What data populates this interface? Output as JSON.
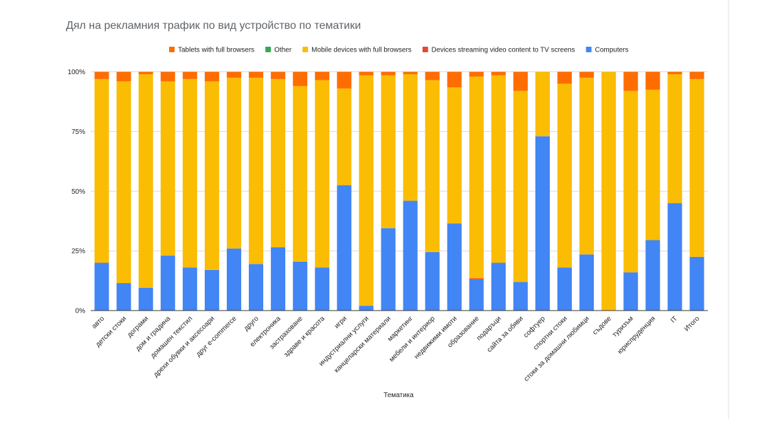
{
  "chart_data": {
    "type": "bar",
    "stacked": true,
    "percent_stacked": true,
    "title": "Дял на рекламния трафик по вид устройство по тематики",
    "xlabel": "Тематика",
    "ylabel": "",
    "ylim": [
      0,
      100
    ],
    "y_ticks": [
      "0%",
      "25%",
      "50%",
      "75%",
      "100%"
    ],
    "grid": true,
    "legend_position": "top",
    "categories": [
      "авто",
      "детски стоки",
      "дограми",
      "дом и градина",
      "домашен текстил",
      "дрехи обувки и аксесоари",
      "друг e-commerce",
      "друго",
      "електроника",
      "застраховане",
      "здраве и красота",
      "игри",
      "индустриални услуги",
      "канцеларски материали",
      "маркетинг",
      "мебели и интериор",
      "недвижими имоти",
      "образование",
      "подаръци",
      "сайта за обяви",
      "софтуер",
      "спортни стоки",
      "стоки за домашни любимци",
      "съдове",
      "туризъм",
      "юриспруденция",
      "IT",
      "Итого"
    ],
    "series": [
      {
        "name": "Computers",
        "color": "#4285f4",
        "values": [
          20,
          11.5,
          9.5,
          23,
          18,
          17,
          26,
          19.5,
          26.5,
          20.5,
          18,
          52.5,
          2,
          34.5,
          46,
          24.5,
          36.5,
          13,
          20,
          12,
          73,
          18,
          23.5,
          0,
          16,
          29.5,
          45,
          22.5
        ]
      },
      {
        "name": "Devices streaming video content to TV screens",
        "color": "#ea4335",
        "values": [
          0,
          0,
          0,
          0,
          0,
          0,
          0,
          0,
          0,
          0,
          0,
          0,
          0,
          0,
          0,
          0,
          0,
          0.5,
          0,
          0,
          0,
          0,
          0,
          0,
          0,
          0,
          0,
          0
        ]
      },
      {
        "name": "Mobile devices with full browsers",
        "color": "#fbbc04",
        "values": [
          77,
          84.5,
          89.5,
          73,
          79,
          79,
          71.5,
          78,
          70.5,
          73.5,
          78.5,
          40.5,
          96.5,
          64,
          53,
          72,
          57,
          84.5,
          78.5,
          80,
          27,
          77,
          74,
          100,
          76,
          63,
          54,
          74.5
        ]
      },
      {
        "name": "Other",
        "color": "#34a853",
        "values": [
          0,
          0,
          0,
          0,
          0,
          0,
          0,
          0,
          0,
          0,
          0,
          0,
          0,
          0,
          0,
          0,
          0,
          0,
          0,
          0,
          0,
          0,
          0,
          0,
          0,
          0,
          0,
          0
        ]
      },
      {
        "name": "Tablets with full browsers",
        "color": "#ff6d01",
        "values": [
          3,
          4,
          1,
          4,
          3,
          4,
          2.5,
          2.5,
          3,
          6,
          3.5,
          7,
          1.5,
          1.5,
          1,
          3.5,
          6.5,
          2,
          1.5,
          8,
          0,
          5,
          2.5,
          0,
          8,
          7.5,
          1,
          3
        ]
      }
    ],
    "legend_order": [
      "Tablets with full browsers",
      "Other",
      "Mobile devices with full browsers",
      "Devices streaming video content to TV screens",
      "Computers"
    ]
  }
}
